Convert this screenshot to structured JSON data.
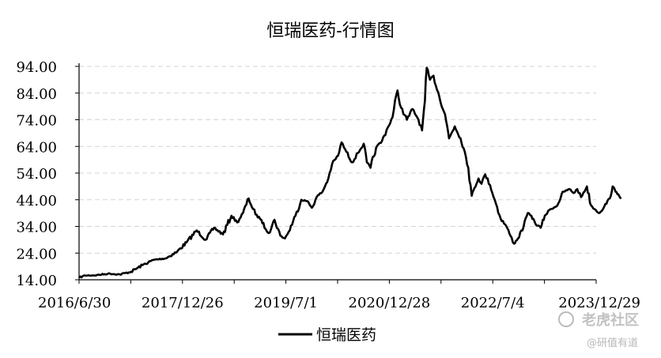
{
  "chart_data": {
    "type": "line",
    "title": "恒瑞医药-行情图",
    "xlabel": "",
    "ylabel": "",
    "ylim": [
      14,
      94
    ],
    "y_ticks": [
      "14.00",
      "24.00",
      "34.00",
      "44.00",
      "54.00",
      "64.00",
      "74.00",
      "84.00",
      "94.00"
    ],
    "x_tick_labels": [
      "2016/6/30",
      "2017/12/26",
      "2019/7/1",
      "2020/12/28",
      "2022/7/4",
      "2023/12/29"
    ],
    "grid": "horizontal dashed",
    "legend": "bottom-center",
    "line_color": "#000000",
    "series": [
      {
        "name": "恒瑞医药",
        "points": [
          [
            "2016/6/30",
            14.8
          ],
          [
            "2016/8/1",
            15.6
          ],
          [
            "2016/10/1",
            15.7
          ],
          [
            "2016/12/1",
            16.3
          ],
          [
            "2017/2/1",
            16.0
          ],
          [
            "2017/4/1",
            17.0
          ],
          [
            "2017/6/1",
            19.5
          ],
          [
            "2017/8/1",
            21.5
          ],
          [
            "2017/10/1",
            22.0
          ],
          [
            "2017/12/1",
            24.5
          ],
          [
            "2018/1/20",
            28.0
          ],
          [
            "2018/3/15",
            32.5
          ],
          [
            "2018/5/1",
            29.0
          ],
          [
            "2018/6/15",
            33.5
          ],
          [
            "2018/8/1",
            31.0
          ],
          [
            "2018/9/15",
            38.0
          ],
          [
            "2018/10/15",
            35.5
          ],
          [
            "2018/11/15",
            39.0
          ],
          [
            "2018/12/15",
            44.5
          ],
          [
            "2019/1/20",
            38.5
          ],
          [
            "2019/2/20",
            36.5
          ],
          [
            "2019/3/15",
            33.0
          ],
          [
            "2019/4/1",
            31.5
          ],
          [
            "2019/5/1",
            36.5
          ],
          [
            "2019/6/1",
            30.5
          ],
          [
            "2019/6/25",
            29.5
          ],
          [
            "2019/7/15",
            32.0
          ],
          [
            "2019/8/20",
            38.0
          ],
          [
            "2019/9/20",
            44.0
          ],
          [
            "2019/10/20",
            43.5
          ],
          [
            "2019/11/15",
            41.0
          ],
          [
            "2019/12/10",
            45.0
          ],
          [
            "2020/1/10",
            47.0
          ],
          [
            "2020/2/10",
            52.0
          ],
          [
            "2020/3/1",
            57.5
          ],
          [
            "2020/4/1",
            60.5
          ],
          [
            "2020/4/20",
            65.5
          ],
          [
            "2020/5/15",
            62.0
          ],
          [
            "2020/6/15",
            58.0
          ],
          [
            "2020/7/15",
            61.5
          ],
          [
            "2020/8/15",
            65.0
          ],
          [
            "2020/9/1",
            58.0
          ],
          [
            "2020/9/20",
            56.0
          ],
          [
            "2020/10/20",
            63.5
          ],
          [
            "2020/11/20",
            66.0
          ],
          [
            "2020/12/20",
            71.0
          ],
          [
            "2021/1/15",
            75.0
          ],
          [
            "2021/2/10",
            85.0
          ],
          [
            "2021/3/1",
            78.5
          ],
          [
            "2021/4/1",
            74.0
          ],
          [
            "2021/5/1",
            78.0
          ],
          [
            "2021/6/1",
            74.0
          ],
          [
            "2021/6/20",
            70.0
          ],
          [
            "2021/7/5",
            81.0
          ],
          [
            "2021/7/15",
            93.5
          ],
          [
            "2021/8/1",
            89.0
          ],
          [
            "2021/8/20",
            90.5
          ],
          [
            "2021/9/20",
            82.5
          ],
          [
            "2021/10/20",
            76.0
          ],
          [
            "2021/11/10",
            67.0
          ],
          [
            "2021/12/10",
            71.5
          ],
          [
            "2022/1/10",
            67.0
          ],
          [
            "2022/2/1",
            62.0
          ],
          [
            "2022/2/20",
            56.0
          ],
          [
            "2022/3/10",
            45.5
          ],
          [
            "2022/3/25",
            48.5
          ],
          [
            "2022/4/15",
            52.0
          ],
          [
            "2022/5/1",
            50.0
          ],
          [
            "2022/5/20",
            53.5
          ],
          [
            "2022/6/15",
            49.5
          ],
          [
            "2022/7/10",
            44.0
          ],
          [
            "2022/8/10",
            37.0
          ],
          [
            "2022/9/10",
            34.0
          ],
          [
            "2022/10/1",
            30.5
          ],
          [
            "2022/10/20",
            27.5
          ],
          [
            "2022/11/10",
            29.5
          ],
          [
            "2022/12/10",
            34.0
          ],
          [
            "2023/1/1",
            39.0
          ],
          [
            "2023/1/20",
            38.0
          ],
          [
            "2023/2/10",
            35.0
          ],
          [
            "2023/3/10",
            33.5
          ],
          [
            "2023/4/1",
            38.0
          ],
          [
            "2023/5/1",
            40.5
          ],
          [
            "2023/6/1",
            41.5
          ],
          [
            "2023/7/10",
            47.0
          ],
          [
            "2023/8/10",
            48.0
          ],
          [
            "2023/9/1",
            46.5
          ],
          [
            "2023/9/20",
            48.0
          ],
          [
            "2023/10/10",
            45.0
          ],
          [
            "2023/11/10",
            49.0
          ],
          [
            "2023/12/1",
            42.0
          ],
          [
            "2023/12/20",
            40.5
          ],
          [
            "2024/1/15",
            39.0
          ],
          [
            "2024/2/10",
            41.5
          ],
          [
            "2024/3/10",
            44.5
          ],
          [
            "2024/3/25",
            49.0
          ],
          [
            "2024/4/10",
            47.0
          ],
          [
            "2024/4/25",
            46.0
          ],
          [
            "2024/5/10",
            44.5
          ]
        ]
      }
    ]
  },
  "watermark": {
    "site": "老虎社区",
    "author": "@研值有道"
  }
}
